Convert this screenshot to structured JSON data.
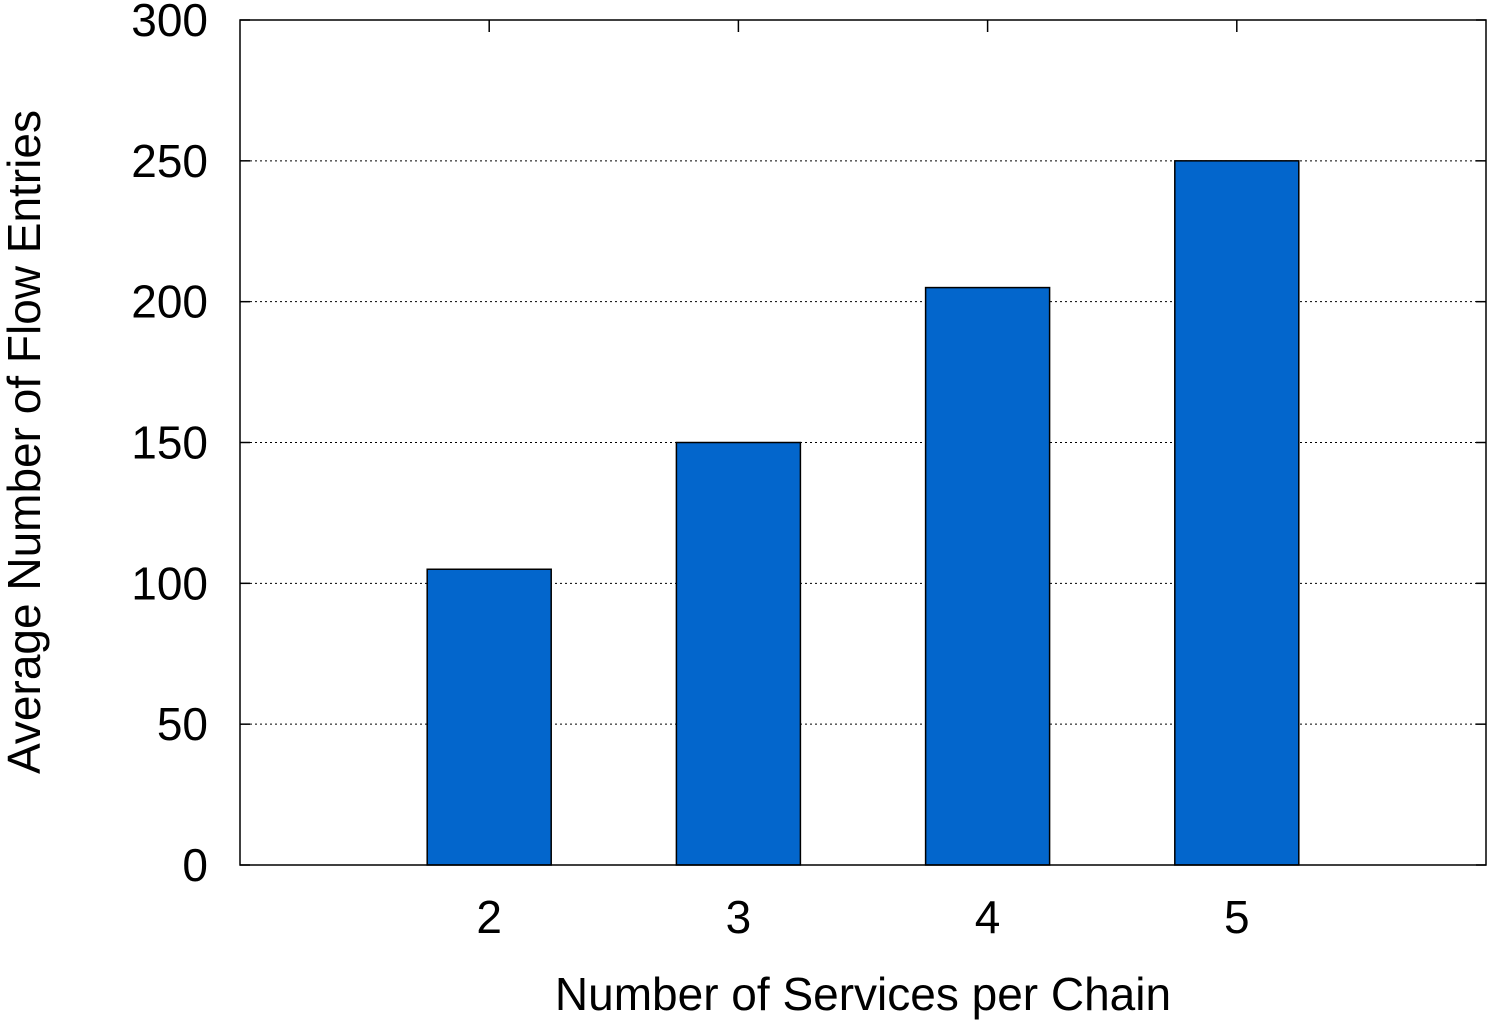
{
  "chart_data": {
    "type": "bar",
    "title": "",
    "xlabel": "Number of Services per Chain",
    "ylabel": "Average Number of Flow Entries",
    "categories": [
      "2",
      "3",
      "4",
      "5"
    ],
    "values": [
      105,
      150,
      205,
      250
    ],
    "ylim": [
      0,
      300
    ],
    "yticks": [
      0,
      50,
      100,
      150,
      200,
      250,
      300
    ],
    "xlim": [
      1,
      6
    ],
    "grid": "horizontal dotted",
    "legend": "none",
    "bar_color": "#0366CC"
  }
}
